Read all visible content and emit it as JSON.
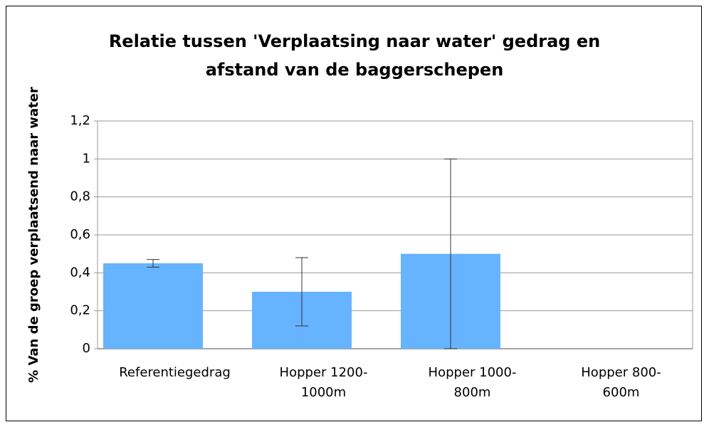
{
  "chart_data": {
    "type": "bar",
    "title": "Relatie tussen 'Verplaatsing naar water' gedrag en afstand van de baggerschepen",
    "y_label": "% Van de groep verplaatsend naar water",
    "categories": [
      "Referentiegedrag",
      "Hopper 1200-1000m",
      "Hopper 1000-800m",
      "Hopper 800-600m"
    ],
    "values": [
      0.45,
      0.3,
      0.5,
      0
    ],
    "errors": [
      0.02,
      0.18,
      0.5,
      null
    ],
    "color": "#66b3ff",
    "ylim": [
      0,
      1.2
    ],
    "yticks": [
      0,
      {
        "value": 0.2,
        "label": "0,2"
      },
      {
        "value": 0.4,
        "label": "0,4"
      },
      {
        "value": 0.6,
        "label": "0,6"
      },
      {
        "value": 0.8,
        "label": "0,8"
      },
      1,
      {
        "value": 1.2,
        "label": "1,2"
      }
    ],
    "grid": true
  }
}
